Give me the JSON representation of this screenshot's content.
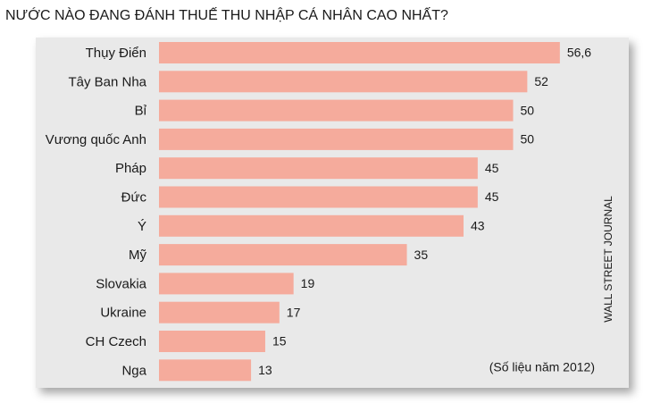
{
  "chart_data": {
    "type": "bar",
    "orientation": "horizontal",
    "title": "NƯỚC NÀO ĐANG ĐÁNH THUẾ THU NHẬP CÁ NHÂN CAO NHẤT?",
    "categories": [
      "Thụy Điển",
      "Tây Ban Nha",
      "Bỉ",
      "Vương quốc Anh",
      "Pháp",
      "Đức",
      "Ý",
      "Mỹ",
      "Slovakia",
      "Ukraine",
      "CH Czech",
      "Nga"
    ],
    "values": [
      56.6,
      52,
      50,
      50,
      45,
      45,
      43,
      35,
      19,
      17,
      15,
      13
    ],
    "value_labels": [
      "56,6",
      "52",
      "50",
      "50",
      "45",
      "45",
      "43",
      "35",
      "19",
      "17",
      "15",
      "13"
    ],
    "color": "#f5ab9c",
    "source": "WALL STREET JOURNAL",
    "note": "(Số liệu năm 2012)"
  }
}
